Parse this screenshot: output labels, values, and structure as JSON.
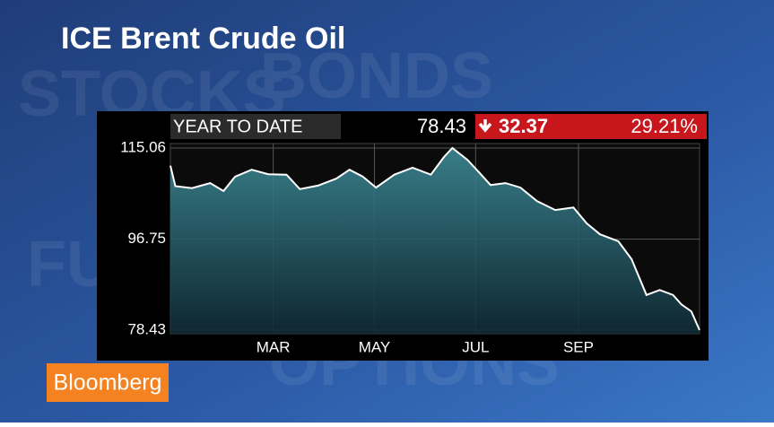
{
  "brand": "Bloomberg",
  "background_words": [
    "STOCKS",
    "BONDS",
    "FUTURES",
    "OPTIONS"
  ],
  "chart_data": {
    "type": "line",
    "title": "ICE Brent Crude Oil",
    "header": {
      "period": "YEAR TO DATE",
      "last": "78.43",
      "change": "32.37",
      "change_pct": "29.21%"
    },
    "series": [
      {
        "color": "#ffffff",
        "x": [
          -2,
          1,
          11,
          22,
          30,
          37,
          47,
          57,
          68,
          76,
          87,
          98,
          106,
          114,
          122,
          133,
          144,
          155,
          163,
          168,
          177,
          184,
          191,
          200,
          209,
          219,
          230,
          241,
          249,
          257,
          268,
          276,
          285,
          293,
          301,
          306,
          312,
          317
        ],
        "values": [
          111.5,
          107.4,
          107.0,
          108.0,
          106.4,
          109.3,
          110.7,
          109.8,
          109.7,
          106.8,
          107.5,
          108.9,
          110.7,
          109.3,
          107.1,
          109.7,
          111.1,
          109.7,
          113.3,
          115.06,
          112.7,
          110.2,
          107.6,
          108.0,
          107.1,
          104.4,
          102.6,
          103.1,
          99.9,
          97.7,
          96.3,
          92.7,
          85.5,
          86.5,
          85.5,
          83.6,
          82.2,
          78.43
        ]
      }
    ],
    "xlim": [
      -2,
      317
    ],
    "xticks": [
      {
        "value": 60,
        "label": "MAR"
      },
      {
        "value": 121,
        "label": "MAY"
      },
      {
        "value": 182,
        "label": "JUL"
      },
      {
        "value": 244,
        "label": "SEP"
      }
    ],
    "ylim": [
      78.43,
      115.06
    ],
    "yticks": [
      78.43,
      96.75,
      115.06
    ],
    "grid": true
  }
}
